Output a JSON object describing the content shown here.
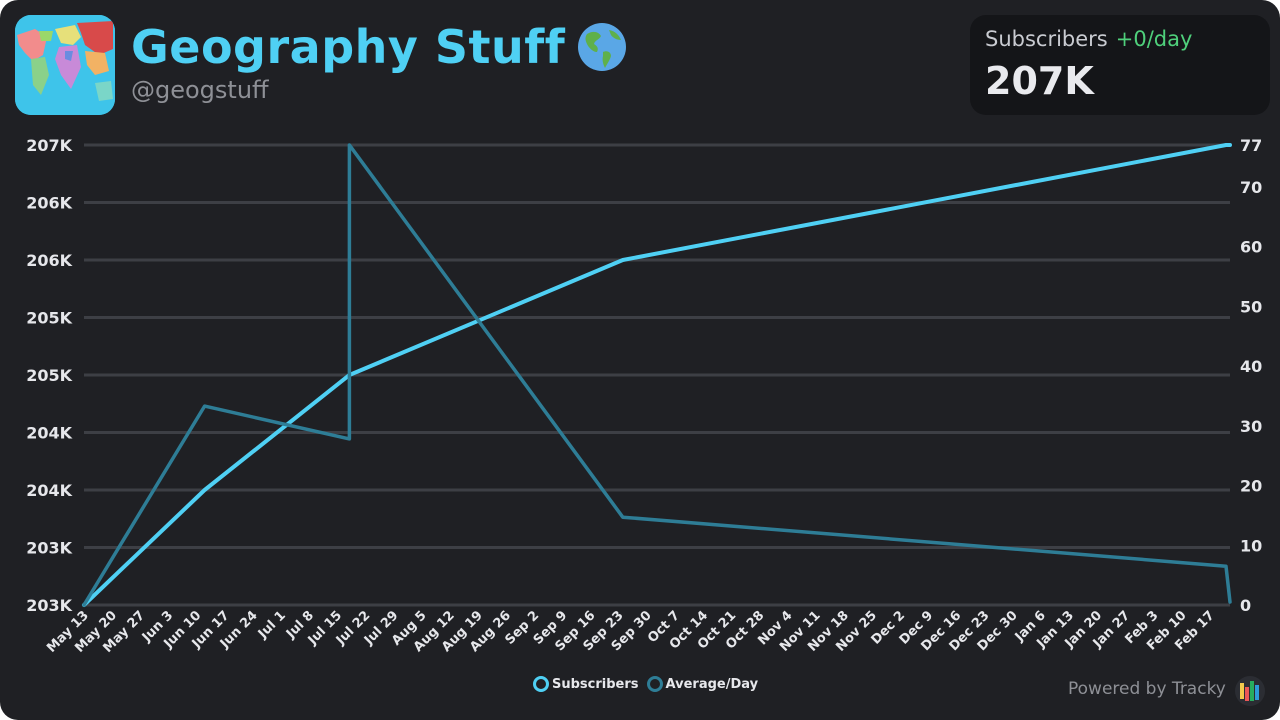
{
  "header": {
    "title": "Geography Stuff",
    "handle": "@geogstuff",
    "globe_icon": "globe-americas-icon",
    "avatar_icon": "world-map-avatar-icon"
  },
  "stat": {
    "label": "Subscribers",
    "delta": "+0/day",
    "value": "207K",
    "delta_color": "#4fd07b"
  },
  "footer": {
    "powered_by": "Powered by Tracky",
    "logo_icon": "tracky-logo-icon"
  },
  "colors": {
    "subscribers": "#4fd0f4",
    "average": "#2e7d96",
    "background": "#1f2024",
    "grid": "#3d3f45"
  },
  "chart_data": {
    "type": "line",
    "grid": true,
    "legend_position": "bottom-center",
    "x_tick_labels": [
      "May 13",
      "May 20",
      "May 27",
      "Jun 3",
      "Jun 10",
      "Jun 17",
      "Jun 24",
      "Jul 1",
      "Jul 8",
      "Jul 15",
      "Jul 22",
      "Jul 29",
      "Aug 5",
      "Aug 12",
      "Aug 19",
      "Aug 26",
      "Sep 2",
      "Sep 9",
      "Sep 16",
      "Sep 23",
      "Sep 30",
      "Oct 7",
      "Oct 14",
      "Oct 21",
      "Oct 28",
      "Nov 4",
      "Nov 11",
      "Nov 18",
      "Nov 25",
      "Dec 2",
      "Dec 9",
      "Dec 16",
      "Dec 23",
      "Dec 30",
      "Jan 6",
      "Jan 13",
      "Jan 20",
      "Jan 27",
      "Feb 3",
      "Feb 10",
      "Feb 17"
    ],
    "left_axis": {
      "tick_labels": [
        "203K",
        "203K",
        "204K",
        "204K",
        "205K",
        "205K",
        "206K",
        "206K",
        "207K"
      ],
      "ylim": [
        203000,
        207000
      ]
    },
    "right_axis": {
      "tick_labels": [
        "0",
        "10",
        "20",
        "30",
        "40",
        "50",
        "60",
        "70",
        "77"
      ],
      "ticks": [
        0,
        10,
        20,
        30,
        40,
        50,
        60,
        70,
        77
      ],
      "ylim": [
        0,
        77
      ]
    },
    "x_range": [
      "May 13",
      "Feb 22"
    ],
    "series": [
      {
        "name": "Subscribers",
        "axis": "left",
        "x": [
          "May 13",
          "Jun 12",
          "Jul 18",
          "Sep 24",
          "Feb 21",
          "Feb 22"
        ],
        "values": [
          203000,
          204000,
          205000,
          206000,
          207000,
          207000
        ]
      },
      {
        "name": "Average/Day",
        "axis": "right",
        "x": [
          "May 13",
          "Jun 12",
          "Jul 18",
          "Jul 18",
          "Sep 24",
          "Feb 21",
          "Feb 22"
        ],
        "values": [
          0,
          33.3,
          27.8,
          77,
          14.7,
          6.5,
          0.5
        ]
      }
    ]
  }
}
